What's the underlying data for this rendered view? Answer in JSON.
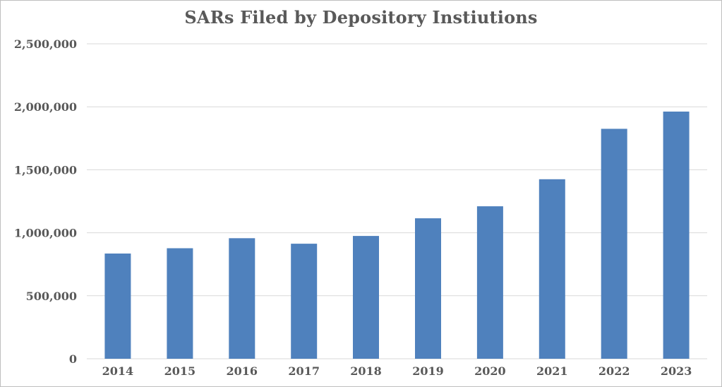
{
  "chart_data": {
    "type": "bar",
    "title": "SARs Filed by Depository Instiutions",
    "xlabel": "",
    "ylabel": "",
    "categories": [
      "2014",
      "2015",
      "2016",
      "2017",
      "2018",
      "2019",
      "2020",
      "2021",
      "2022",
      "2023"
    ],
    "values": [
      835000,
      877000,
      957000,
      913000,
      975000,
      1115000,
      1210000,
      1425000,
      1825000,
      1962000
    ],
    "ylim": [
      0,
      2500000
    ],
    "yticks": [
      0,
      500000,
      1000000,
      1500000,
      2000000,
      2500000
    ],
    "ytick_labels": [
      "0",
      "500,000",
      "1,000,000",
      "1,500,000",
      "2,000,000",
      "2,500,000"
    ],
    "grid": "horizontal",
    "legend": "none",
    "colors": {
      "bar": "#4f81bd",
      "grid": "#d9d9d9",
      "text": "#595959",
      "border": "#bfbfbf"
    }
  }
}
